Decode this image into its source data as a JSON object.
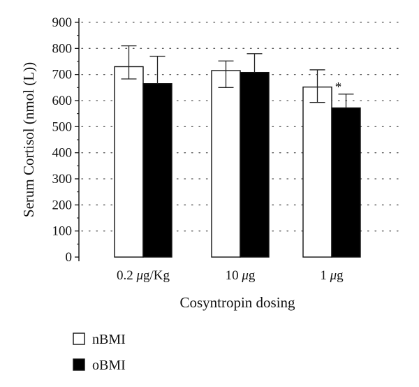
{
  "chart_data": {
    "type": "bar",
    "categories": [
      "0.2 μg/Kg",
      "10 μg",
      "1 μg"
    ],
    "category_labels": [
      {
        "prefix": "0.2 ",
        "unit_symbol": "μ",
        "suffix": "g/Kg"
      },
      {
        "prefix": "10 ",
        "unit_symbol": "μ",
        "suffix": "g"
      },
      {
        "prefix": "1 ",
        "unit_symbol": "μ",
        "suffix": "g"
      }
    ],
    "series": [
      {
        "name": "nBMI",
        "values": [
          730,
          715,
          652
        ],
        "error_low": [
          683,
          650,
          593
        ],
        "error_high": [
          810,
          752,
          718
        ],
        "color": "#ffffff"
      },
      {
        "name": "oBMI",
        "values": [
          665,
          708,
          572
        ],
        "error_low": [
          665,
          708,
          572
        ],
        "error_high": [
          770,
          780,
          625
        ],
        "color": "#000000"
      }
    ],
    "annotations": [
      {
        "category_index": 2,
        "series_index": 1,
        "text": "*"
      }
    ],
    "xlabel": "Cosyntropin dosing",
    "ylabel": "Serum Cortisol (nmol (L))",
    "ylim": [
      0,
      900
    ],
    "yticks": [
      0,
      100,
      200,
      300,
      400,
      500,
      600,
      700,
      800,
      900
    ],
    "grid": "dotted-horizontal",
    "legend_position": "bottom-left"
  }
}
